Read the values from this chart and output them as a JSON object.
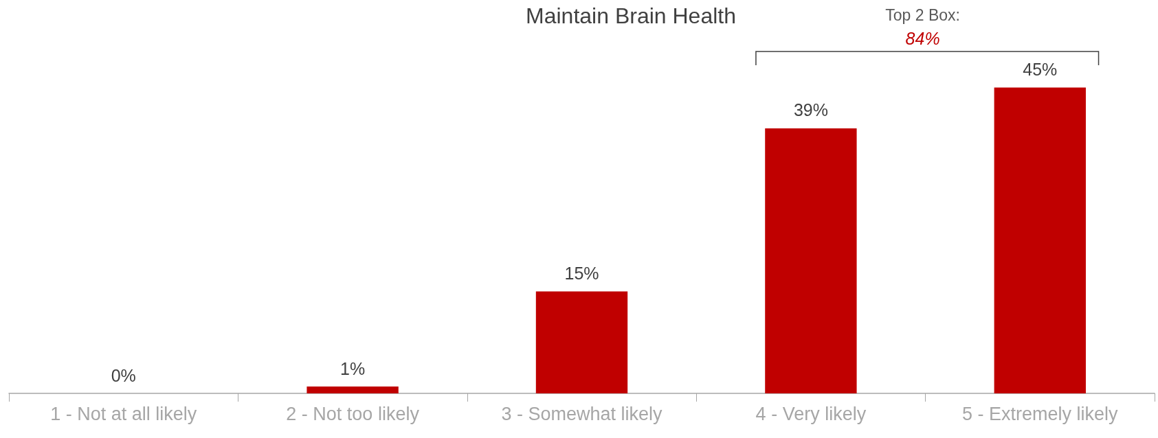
{
  "chart_data": {
    "type": "bar",
    "title": "Maintain Brain Health",
    "categories": [
      "1 - Not at all likely",
      "2 - Not too likely",
      "3 - Somewhat likely",
      "4 - Very likely",
      "5 - Extremely likely"
    ],
    "values": [
      0,
      1,
      15,
      39,
      45
    ],
    "color": "#c00000",
    "value_labels": [
      "0%",
      "1%",
      "15%",
      "39%",
      "45%"
    ],
    "annotations": [
      "Top 2 Box:",
      "84%"
    ],
    "grid": false
  }
}
